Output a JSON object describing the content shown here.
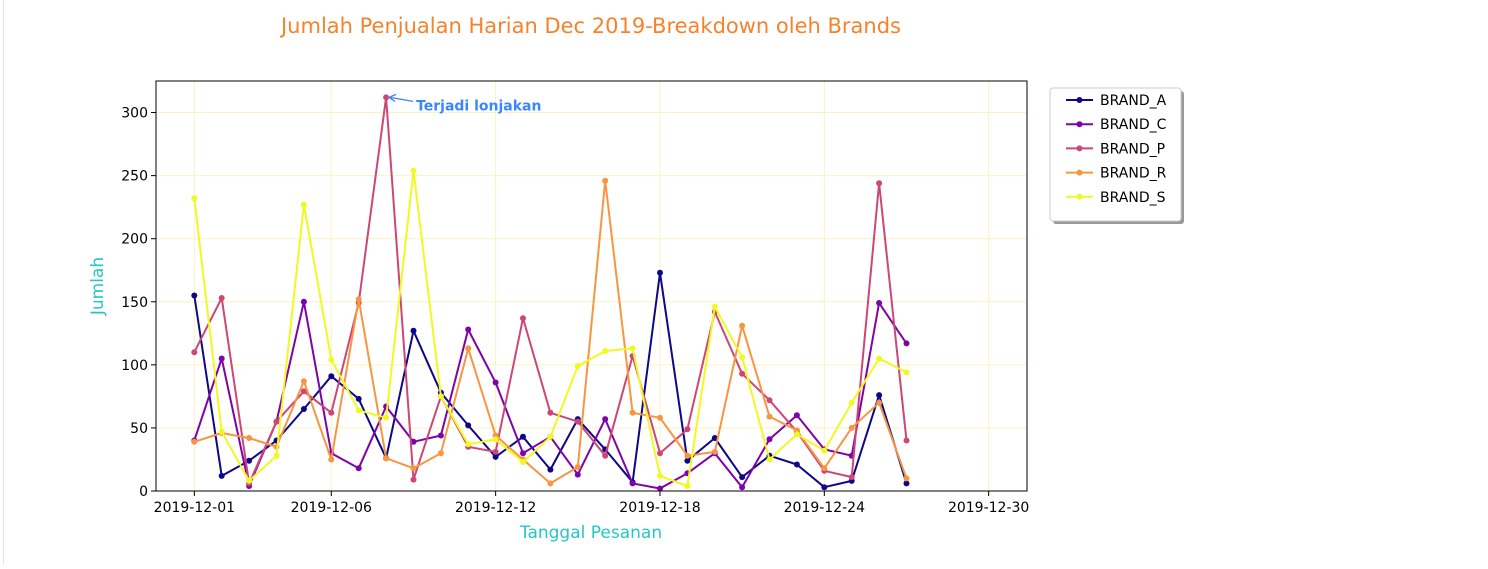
{
  "chart_data": {
    "type": "line",
    "title": "Jumlah Penjualan Harian Dec 2019-Breakdown oleh Brands",
    "xlabel": "Tanggal Pesanan",
    "ylabel": "Jumlah",
    "ylim": [
      0,
      325
    ],
    "yticks": [
      0,
      50,
      100,
      150,
      200,
      250,
      300
    ],
    "xlim": [
      "2019-11-29.6",
      "2019-12-31.4"
    ],
    "xticks": [
      "2019-12-01",
      "2019-12-06",
      "2019-12-12",
      "2019-12-18",
      "2019-12-24",
      "2019-12-30"
    ],
    "grid": true,
    "legend_position": "outside-upper-right",
    "x": [
      "2019-12-01",
      "2019-12-02",
      "2019-12-03",
      "2019-12-04",
      "2019-12-05",
      "2019-12-06",
      "2019-12-07",
      "2019-12-08",
      "2019-12-09",
      "2019-12-10",
      "2019-12-11",
      "2019-12-12",
      "2019-12-13",
      "2019-12-14",
      "2019-12-15",
      "2019-12-16",
      "2019-12-17",
      "2019-12-18",
      "2019-12-19",
      "2019-12-20",
      "2019-12-21",
      "2019-12-22",
      "2019-12-23",
      "2019-12-24",
      "2019-12-25",
      "2019-12-26",
      "2019-12-27",
      "2019-12-28",
      "2019-12-29",
      "2019-12-30",
      "2019-12-31"
    ],
    "series": [
      {
        "name": "BRAND_A",
        "color": "#0d0887",
        "values": [
          155,
          12,
          24,
          40,
          65,
          91,
          73,
          26,
          127,
          78,
          52,
          27,
          43,
          17,
          57,
          33,
          7,
          173,
          24,
          42,
          11,
          28,
          21,
          3,
          8,
          76,
          6,
          null,
          null,
          null,
          null
        ]
      },
      {
        "name": "BRAND_C",
        "color": "#7e03a8",
        "values": [
          40,
          105,
          4,
          55,
          150,
          30,
          18,
          67,
          39,
          44,
          128,
          86,
          30,
          43,
          13,
          57,
          6,
          2,
          14,
          30,
          3,
          41,
          60,
          33,
          28,
          149,
          117,
          null,
          null,
          null,
          null
        ]
      },
      {
        "name": "BRAND_P",
        "color": "#cc4778",
        "values": [
          110,
          153,
          6,
          55,
          79,
          62,
          149,
          312,
          9,
          75,
          35,
          31,
          137,
          62,
          55,
          28,
          107,
          30,
          49,
          142,
          93,
          72,
          47,
          16,
          11,
          244,
          40,
          null,
          null,
          null,
          null
        ]
      },
      {
        "name": "BRAND_R",
        "color": "#f89540",
        "values": [
          39,
          46,
          42,
          35,
          87,
          25,
          152,
          26,
          18,
          30,
          113,
          44,
          25,
          6,
          19,
          246,
          62,
          58,
          28,
          31,
          131,
          59,
          48,
          18,
          50,
          70,
          10,
          null,
          null,
          null,
          null
        ]
      },
      {
        "name": "BRAND_S",
        "color": "#f0f921",
        "values": [
          232,
          47,
          8,
          28,
          227,
          104,
          64,
          58,
          254,
          75,
          37,
          41,
          23,
          43,
          99,
          111,
          113,
          12,
          4,
          146,
          106,
          25,
          45,
          32,
          70,
          105,
          94,
          null,
          null,
          null,
          null
        ]
      }
    ],
    "annotation": {
      "text": "Terjadi lonjakan",
      "x": "2019-12-08",
      "y": 312,
      "color": "#3a86ff"
    },
    "colors": {
      "title": "#f6822b",
      "axis_label": "#26c6c6",
      "grid": "#fff0c2"
    }
  }
}
